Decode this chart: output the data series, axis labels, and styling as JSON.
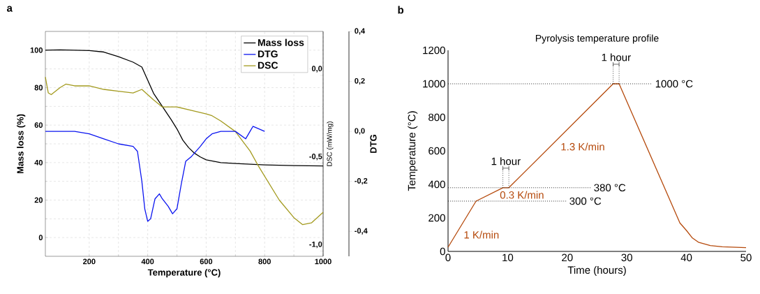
{
  "chart_data": [
    {
      "type": "line",
      "xlabel": "Temperature (°C)",
      "ylabel": "Mass loss (%)",
      "y2label": "DSC (mW/mg)",
      "y3label": "DTG",
      "xlim": [
        50,
        1000
      ],
      "xticks": [
        200,
        400,
        600,
        800,
        1000
      ],
      "ylim": [
        -10,
        110
      ],
      "yticks": [
        0,
        20,
        40,
        60,
        80,
        100
      ],
      "y2lim": [
        -1.03,
        0.25
      ],
      "y2ticks": [
        {
          "value": 0,
          "label": "0,0"
        },
        {
          "value": -0.5,
          "label": "-0,5"
        },
        {
          "value": -1,
          "label": "-1,0"
        }
      ],
      "y3lim": [
        -0.5,
        0.4
      ],
      "y3ticks": [
        {
          "value": 0.4,
          "label": "0,4"
        },
        {
          "value": 0.2,
          "label": "0,2"
        },
        {
          "value": 0,
          "label": "0,0"
        },
        {
          "value": -0.2,
          "label": "-0,2"
        },
        {
          "value": -0.4,
          "label": "-0,4"
        }
      ],
      "grid": true,
      "legend": "top right",
      "marker": "none",
      "annotations": [
        "a"
      ],
      "series": [
        {
          "name": "Mass loss",
          "color": "#000000",
          "axis": "y",
          "x": [
            50,
            100,
            150,
            200,
            250,
            300,
            350,
            380,
            400,
            420,
            450,
            480,
            500,
            520,
            540,
            560,
            580,
            600,
            650,
            700,
            800,
            900,
            1000
          ],
          "values": [
            100,
            100.2,
            100,
            99.8,
            99,
            96.5,
            93.6,
            91,
            84,
            77,
            70,
            63,
            58,
            52,
            48,
            45,
            43,
            41.5,
            40,
            39.5,
            38.8,
            38.4,
            38.2
          ]
        },
        {
          "name": "DTG",
          "color": "#0a14f0",
          "axis": "y3",
          "x": [
            50,
            100,
            150,
            200,
            250,
            300,
            350,
            365,
            380,
            390,
            400,
            410,
            425,
            440,
            450,
            470,
            485,
            500,
            515,
            530,
            550,
            580,
            600,
            620,
            650,
            700,
            735,
            750,
            760,
            800
          ],
          "values": [
            0.0,
            0.0,
            0.0,
            -0.01,
            -0.03,
            -0.05,
            -0.06,
            -0.08,
            -0.2,
            -0.31,
            -0.36,
            -0.35,
            -0.27,
            -0.25,
            -0.27,
            -0.3,
            -0.33,
            -0.31,
            -0.21,
            -0.12,
            -0.1,
            -0.06,
            -0.03,
            -0.01,
            0.0,
            0.0,
            -0.03,
            0.0,
            0.02,
            0.0
          ]
        },
        {
          "name": "DSC",
          "color": "#a39a1e",
          "axis": "y2",
          "x": [
            50,
            60,
            70,
            100,
            120,
            150,
            200,
            250,
            300,
            350,
            380,
            400,
            420,
            450,
            500,
            550,
            600,
            620,
            650,
            700,
            750,
            780,
            850,
            900,
            930,
            960,
            1000
          ],
          "values": [
            -0.01,
            -0.1,
            -0.11,
            -0.07,
            -0.05,
            -0.06,
            -0.06,
            -0.08,
            -0.09,
            -0.1,
            -0.08,
            -0.11,
            -0.14,
            -0.18,
            -0.18,
            -0.2,
            -0.22,
            -0.23,
            -0.26,
            -0.32,
            -0.43,
            -0.52,
            -0.71,
            -0.81,
            -0.85,
            -0.84,
            -0.78
          ]
        }
      ]
    },
    {
      "type": "line",
      "title": "Pyrolysis temperature profile",
      "xlabel": "Time (hours)",
      "ylabel": "Temperature (°C)",
      "xlim": [
        0,
        50
      ],
      "xticks": [
        0,
        10,
        20,
        30,
        40,
        50
      ],
      "ylim": [
        0,
        1200
      ],
      "yticks": [
        0,
        200,
        400,
        600,
        800,
        1000,
        1200
      ],
      "grid": false,
      "marker": "none",
      "ref_lines": [
        {
          "axis": "y",
          "value": 1000,
          "label": "1000 °C",
          "line_style": "dotted"
        },
        {
          "axis": "y",
          "value": 380,
          "label": "380 °C",
          "line_style": "dotted"
        },
        {
          "axis": "y",
          "value": 300,
          "label": "300 °C",
          "line_style": "dotted"
        }
      ],
      "annotations": [
        "b",
        {
          "text": "1 hour",
          "x": 9.7,
          "y": 380
        },
        {
          "text": "1 hour",
          "x": 28.2,
          "y": 1000
        },
        "1 K/min",
        "0.3 K/min",
        "1.3 K/min"
      ],
      "series": [
        {
          "color": "#b5490b",
          "x": [
            0,
            4.7,
            9.2,
            10.2,
            27.7,
            28.7,
            38.9,
            40,
            41,
            42,
            44,
            46,
            50
          ],
          "values": [
            25,
            300,
            380,
            380,
            1000,
            1000,
            170,
            125,
            80,
            55,
            35,
            28,
            22
          ]
        }
      ]
    }
  ]
}
